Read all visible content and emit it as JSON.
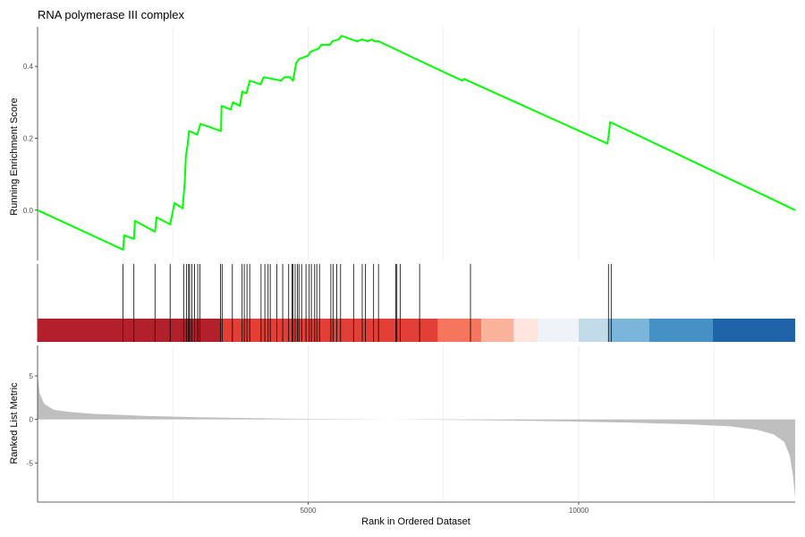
{
  "chart_data": {
    "type": "line",
    "title": "RNA polymerase III complex",
    "xlabel": "Rank in Ordered Dataset",
    "x_ticks": [
      5000,
      10000
    ],
    "xlim": [
      0,
      14000
    ],
    "grid": "vertical",
    "panels": {
      "running_score": {
        "ylabel": "Running Enrichment Score",
        "y_ticks": [
          0.0,
          0.2,
          0.4
        ],
        "ylim": [
          -0.14,
          0.51
        ],
        "line_color": "#00ff00",
        "points": [
          [
            0,
            0.0
          ],
          [
            1580,
            -0.11
          ],
          [
            1600,
            -0.07
          ],
          [
            1780,
            -0.08
          ],
          [
            1800,
            -0.03
          ],
          [
            2170,
            -0.06
          ],
          [
            2200,
            -0.02
          ],
          [
            2450,
            -0.04
          ],
          [
            2530,
            0.02
          ],
          [
            2680,
            0.005
          ],
          [
            2700,
            0.04
          ],
          [
            2720,
            0.08
          ],
          [
            2740,
            0.15
          ],
          [
            2770,
            0.18
          ],
          [
            2800,
            0.22
          ],
          [
            2950,
            0.21
          ],
          [
            3010,
            0.24
          ],
          [
            3390,
            0.22
          ],
          [
            3400,
            0.29
          ],
          [
            3570,
            0.28
          ],
          [
            3610,
            0.3
          ],
          [
            3740,
            0.29
          ],
          [
            3780,
            0.33
          ],
          [
            3860,
            0.325
          ],
          [
            3920,
            0.36
          ],
          [
            4120,
            0.35
          ],
          [
            4180,
            0.37
          ],
          [
            4500,
            0.36
          ],
          [
            4560,
            0.37
          ],
          [
            4660,
            0.37
          ],
          [
            4720,
            0.36
          ],
          [
            4780,
            0.41
          ],
          [
            4830,
            0.42
          ],
          [
            5000,
            0.43
          ],
          [
            5040,
            0.44
          ],
          [
            5200,
            0.45
          ],
          [
            5240,
            0.46
          ],
          [
            5400,
            0.46
          ],
          [
            5450,
            0.47
          ],
          [
            5560,
            0.475
          ],
          [
            5620,
            0.485
          ],
          [
            5800,
            0.475
          ],
          [
            5900,
            0.47
          ],
          [
            6000,
            0.475
          ],
          [
            6100,
            0.47
          ],
          [
            6180,
            0.475
          ],
          [
            6220,
            0.47
          ],
          [
            6300,
            0.47
          ],
          [
            7000,
            0.42
          ],
          [
            7850,
            0.36
          ],
          [
            7880,
            0.365
          ],
          [
            10530,
            0.185
          ],
          [
            10560,
            0.215
          ],
          [
            10580,
            0.245
          ],
          [
            14000,
            0.0
          ]
        ]
      },
      "hit_positions": [
        1580,
        1780,
        2170,
        2450,
        2700,
        2750,
        2790,
        2810,
        2850,
        2900,
        2960,
        3000,
        3380,
        3410,
        3600,
        3780,
        3820,
        3870,
        3920,
        4130,
        4200,
        4260,
        4300,
        4420,
        4530,
        4640,
        4700,
        4720,
        4760,
        4800,
        4830,
        4880,
        4960,
        5020,
        5060,
        5120,
        5160,
        5210,
        5420,
        5460,
        5530,
        5600,
        5840,
        6000,
        6060,
        6210,
        6300,
        6620,
        6640,
        6700,
        7060,
        8000,
        10550,
        10600
      ],
      "rank_bar": {
        "segments": [
          {
            "from": 0,
            "to": 3400,
            "color": "#b2212b"
          },
          {
            "from": 3400,
            "to": 7400,
            "color": "#e23f36"
          },
          {
            "from": 7400,
            "to": 8200,
            "color": "#f6765d"
          },
          {
            "from": 8200,
            "to": 8800,
            "color": "#fbb29b"
          },
          {
            "from": 8800,
            "to": 9250,
            "color": "#fde5de"
          },
          {
            "from": 9250,
            "to": 10000,
            "color": "#eef3fa"
          },
          {
            "from": 10000,
            "to": 10550,
            "color": "#c2dbe9"
          },
          {
            "from": 10550,
            "to": 11300,
            "color": "#7ab6d9"
          },
          {
            "from": 11300,
            "to": 12480,
            "color": "#4591c5"
          },
          {
            "from": 12480,
            "to": 14000,
            "color": "#1f63a8"
          }
        ]
      },
      "ranked_metric": {
        "ylabel": "Ranked List Metric",
        "y_ticks": [
          -5,
          0,
          5
        ],
        "ylim": [
          -9.5,
          8.5
        ],
        "fill_color": "#bebebe",
        "points": [
          [
            0,
            5.2
          ],
          [
            40,
            3.0
          ],
          [
            120,
            1.8
          ],
          [
            300,
            1.1
          ],
          [
            600,
            0.85
          ],
          [
            1000,
            0.65
          ],
          [
            2000,
            0.4
          ],
          [
            3000,
            0.25
          ],
          [
            4000,
            0.14
          ],
          [
            5000,
            0.07
          ],
          [
            6000,
            0.02
          ],
          [
            7000,
            -0.03
          ],
          [
            8000,
            -0.08
          ],
          [
            9000,
            -0.15
          ],
          [
            10000,
            -0.25
          ],
          [
            11000,
            -0.37
          ],
          [
            12000,
            -0.55
          ],
          [
            12800,
            -0.8
          ],
          [
            13300,
            -1.2
          ],
          [
            13600,
            -1.7
          ],
          [
            13800,
            -2.6
          ],
          [
            13900,
            -4.2
          ],
          [
            13960,
            -6.5
          ],
          [
            14000,
            -9.0
          ]
        ]
      }
    }
  }
}
